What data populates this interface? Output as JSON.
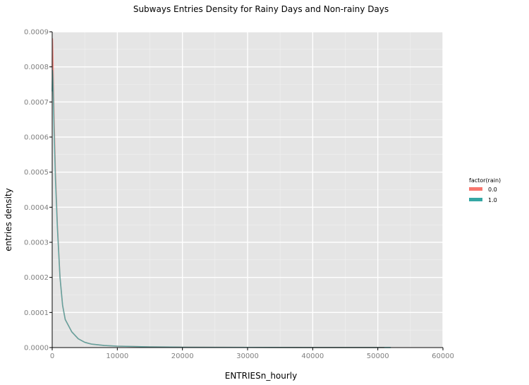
{
  "chart_data": {
    "type": "line",
    "title": "Subways Entries Density for Rainy Days and Non-rainy Days",
    "xlabel": "ENTRIESn_hourly",
    "ylabel": "entries density",
    "xlim": [
      0,
      60000
    ],
    "ylim": [
      0,
      0.0009
    ],
    "x_ticks": [
      0,
      10000,
      20000,
      30000,
      40000,
      50000,
      60000
    ],
    "y_ticks": [
      "0.0000",
      "0.0001",
      "0.0002",
      "0.0003",
      "0.0004",
      "0.0005",
      "0.0006",
      "0.0007",
      "0.0008",
      "0.0009"
    ],
    "grid": true,
    "legend": {
      "title": "factor(rain)",
      "position": "right"
    },
    "series": [
      {
        "name": "0.0",
        "color": "#f8766d",
        "x": [
          0,
          50,
          100,
          200,
          300,
          500,
          800,
          1200,
          1600,
          2000,
          3000,
          4000,
          5000,
          6000,
          8000,
          10000,
          15000,
          20000,
          30000,
          40000,
          51000
        ],
        "y": [
          0.0008,
          0.00088,
          0.00085,
          0.00075,
          0.00065,
          0.0005,
          0.00035,
          0.0002,
          0.00012,
          8e-05,
          4.5e-05,
          2.5e-05,
          1.5e-05,
          1e-05,
          6e-06,
          4e-06,
          2e-06,
          1e-06,
          5e-07,
          2e-07,
          1e-07
        ]
      },
      {
        "name": "1.0",
        "color": "#35a7a4",
        "x": [
          0,
          50,
          100,
          200,
          300,
          500,
          800,
          1200,
          1600,
          2000,
          3000,
          4000,
          5000,
          6000,
          8000,
          10000,
          15000,
          20000,
          30000,
          40000,
          52000
        ],
        "y": [
          0.00073,
          0.00079,
          0.00077,
          0.0007,
          0.00061,
          0.00048,
          0.00034,
          0.0002,
          0.00012,
          8e-05,
          4.5e-05,
          2.5e-05,
          1.5e-05,
          1e-05,
          6e-06,
          4e-06,
          2e-06,
          1e-06,
          5e-07,
          2e-07,
          1e-07
        ]
      }
    ]
  }
}
